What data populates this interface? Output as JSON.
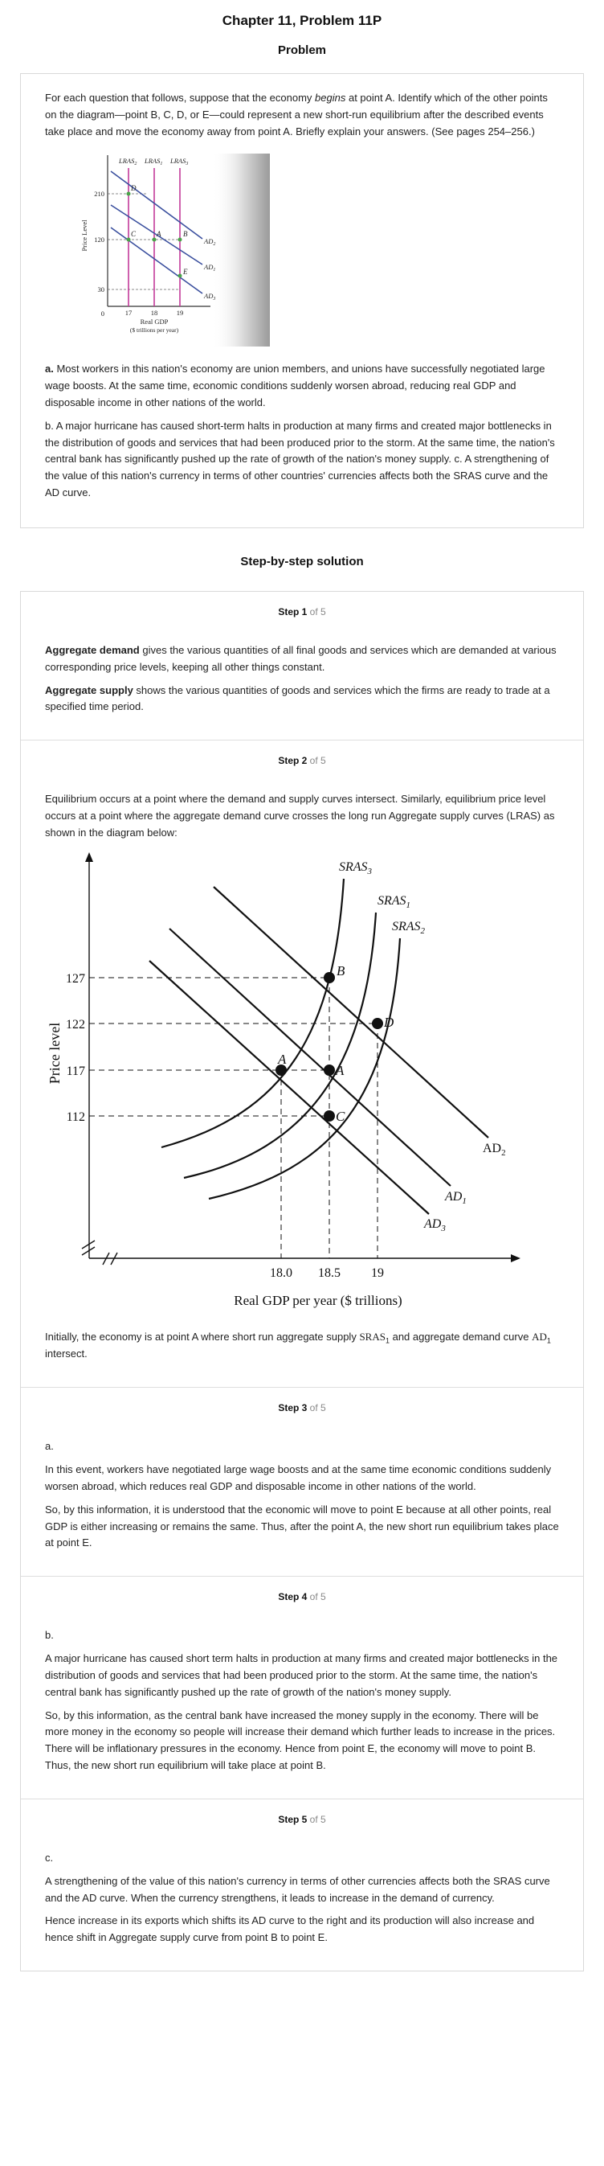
{
  "header": {
    "chapter_title": "Chapter 11, Problem 11P",
    "problem_heading": "Problem"
  },
  "problem": {
    "intro_1": "For each question that follows, suppose that the economy ",
    "intro_em": "begins",
    "intro_2": " at point A. Identify which of the other points on the diagram—point B, C, D, or E—could represent a new short-run equilibrium after the described events take place and move the economy away from point A. Briefly explain your answers. (See pages 254–256.)",
    "part_a_label": "a.",
    "part_a_text": " Most workers in this nation's economy are union members, and unions have successfully negotiated large wage boosts. At the same time, economic conditions suddenly worsen abroad, reducing real GDP and disposable income in other nations of the world.",
    "part_b_text": "b. A major hurricane has caused short-term halts in production at many firms and created major bottlenecks in the distribution of goods and services that had been produced prior to the storm. At the same time, the nation's central bank has significantly pushed up the rate of growth of the nation's money supply. c. A strengthening of the value of this nation's currency in terms of other countries' currencies affects both the SRAS curve and the AD curve."
  },
  "small_diagram": {
    "y_axis_label": "Price Level",
    "x_axis_label": "Real GDP",
    "x_axis_unit": "($ trillions per year)",
    "y_ticks": [
      "210",
      "120",
      "30"
    ],
    "origin": "0",
    "x_ticks": [
      "17",
      "18",
      "19"
    ],
    "top_labels": [
      "LRAS",
      "LRAS",
      "LRAS"
    ],
    "top_subs": [
      "2",
      "1",
      "3"
    ],
    "curve_labels": [
      "AD",
      "AD",
      "AD"
    ],
    "curve_subs": [
      "2",
      "1",
      "3"
    ],
    "points": [
      "D",
      "C",
      "A",
      "B",
      "E"
    ]
  },
  "solution": {
    "heading": "Step-by-step solution",
    "of_total": "of 5",
    "steps": [
      {
        "label": "Step 1",
        "term1": "Aggregate demand",
        "text1": " gives the various quantities of all final goods and services which are demanded at various corresponding price levels, keeping all other things constant.",
        "term2": "Aggregate supply",
        "text2": " shows the various quantities of goods and services which the firms are ready to trade at a specified time period."
      },
      {
        "label": "Step 2",
        "text": "Equilibrium occurs at a point where the demand and supply curves intersect. Similarly, equilibrium price level occurs at a point where the aggregate demand curve crosses the long run Aggregate supply curves (LRAS) as shown in the diagram below:",
        "after_1": "Initially, the economy is at point A where short run aggregate supply ",
        "after_sras": "SRAS",
        "after_sras_sub": "1",
        "after_2": " and aggregate demand curve ",
        "after_ad": "AD",
        "after_ad_sub": "1",
        "after_3": " intersect."
      },
      {
        "label": "Step 3",
        "part": "a.",
        "p1": "In this event, workers have negotiated large wage boosts and at the same time economic conditions suddenly worsen abroad, which reduces real GDP and disposable income in other nations of the world.",
        "p2": "So, by this information, it is understood that the economic will move to point E because at all other points, real GDP is either increasing or remains the same. Thus, after the point A, the new short run equilibrium takes place at point E."
      },
      {
        "label": "Step 4",
        "part": "b.",
        "p1": "A major hurricane has caused short term halts in production at many firms and created major bottlenecks in the distribution of goods and services that had been produced prior to the storm. At the same time, the nation's central bank has significantly pushed up the rate of growth of the nation's money supply.",
        "p2": "So, by this information, as the central bank have increased the money supply in the economy. There will be more money in the economy so people will increase their demand which further leads to increase in the prices. There will be inflationary pressures in the economy. Hence from point E, the economy will move to point B. Thus, the new short run equilibrium will take place at point B."
      },
      {
        "label": "Step 5",
        "part": "c.",
        "p1": "A strengthening of the value of this nation's currency in terms of other currencies affects both the SRAS curve and the AD curve. When the currency strengthens, it leads to increase in the demand of currency.",
        "p2": "Hence increase in its exports which shifts its AD curve to the right and its production will also increase and hence shift in Aggregate supply curve from point B to point E."
      }
    ]
  },
  "big_diagram": {
    "y_axis_label": "Price level",
    "x_axis_label": "Real GDP per year ($ trillions)",
    "y_ticks": [
      "127",
      "122",
      "117",
      "112"
    ],
    "x_ticks": [
      "18.0",
      "18.5",
      "19"
    ],
    "sras_labels": [
      "SRAS",
      "SRAS",
      "SRAS"
    ],
    "sras_subs": [
      "3",
      "1",
      "2"
    ],
    "ad_labels": [
      "AD",
      "AD",
      "AD"
    ],
    "ad_subs": [
      "2",
      "1",
      "3"
    ],
    "points": [
      "B",
      "D",
      "A",
      "A",
      "C"
    ]
  }
}
